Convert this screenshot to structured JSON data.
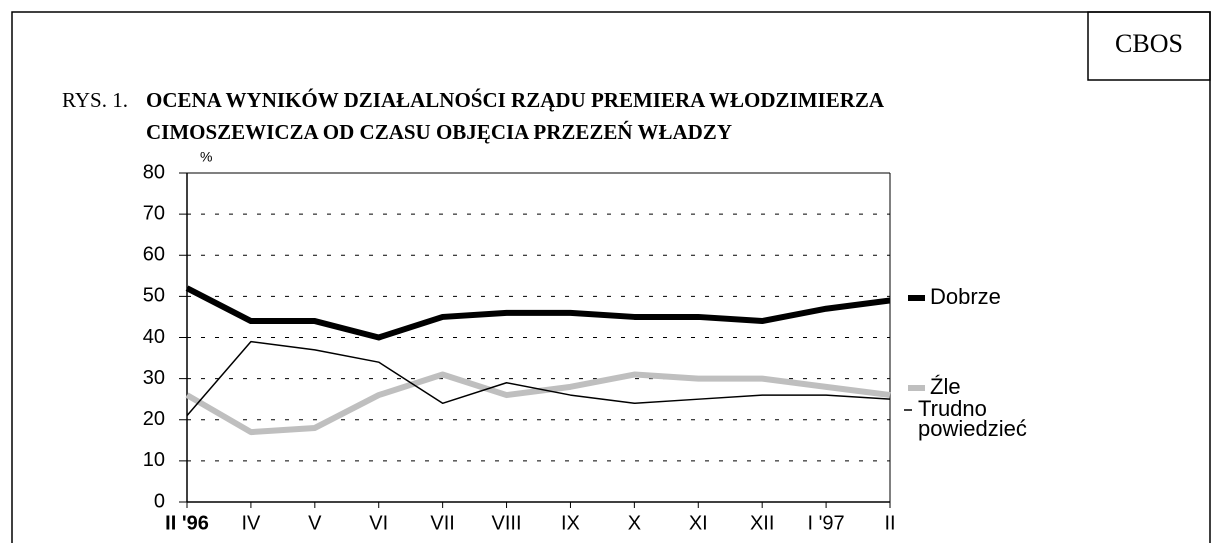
{
  "chart_data": {
    "type": "line",
    "source": "CBOS",
    "figure_label": "RYS. 1.",
    "title_lines": [
      "OCENA WYNIKÓW DZIAŁALNOŚCI RZĄDU PREMIERA WŁODZIMIERZA",
      "CIMOSZEWICZA OD CZASU OBJĘCIA PRZEZEŃ WŁADZY"
    ],
    "y_unit": "%",
    "categories": [
      "II '96",
      "IV",
      "V",
      "VI",
      "VII",
      "VIII",
      "IX",
      "X",
      "XI",
      "XII",
      "I '97",
      "II"
    ],
    "series": [
      {
        "name": "Dobrze",
        "color": "#000000",
        "values": [
          52,
          44,
          44,
          40,
          45,
          46,
          46,
          45,
          45,
          44,
          47,
          49
        ]
      },
      {
        "name": "Źle",
        "color": "#bfbfbf",
        "values": [
          26,
          17,
          18,
          26,
          31,
          26,
          28,
          31,
          30,
          30,
          28,
          26
        ]
      },
      {
        "name": "Trudno powiedzieć",
        "color": "#000000",
        "values": [
          21,
          39,
          37,
          34,
          24,
          29,
          26,
          24,
          25,
          26,
          26,
          25
        ]
      }
    ],
    "ylim": [
      0,
      80
    ],
    "yticks": [
      0,
      10,
      20,
      30,
      40,
      50,
      60,
      70,
      80
    ],
    "grid": true
  }
}
